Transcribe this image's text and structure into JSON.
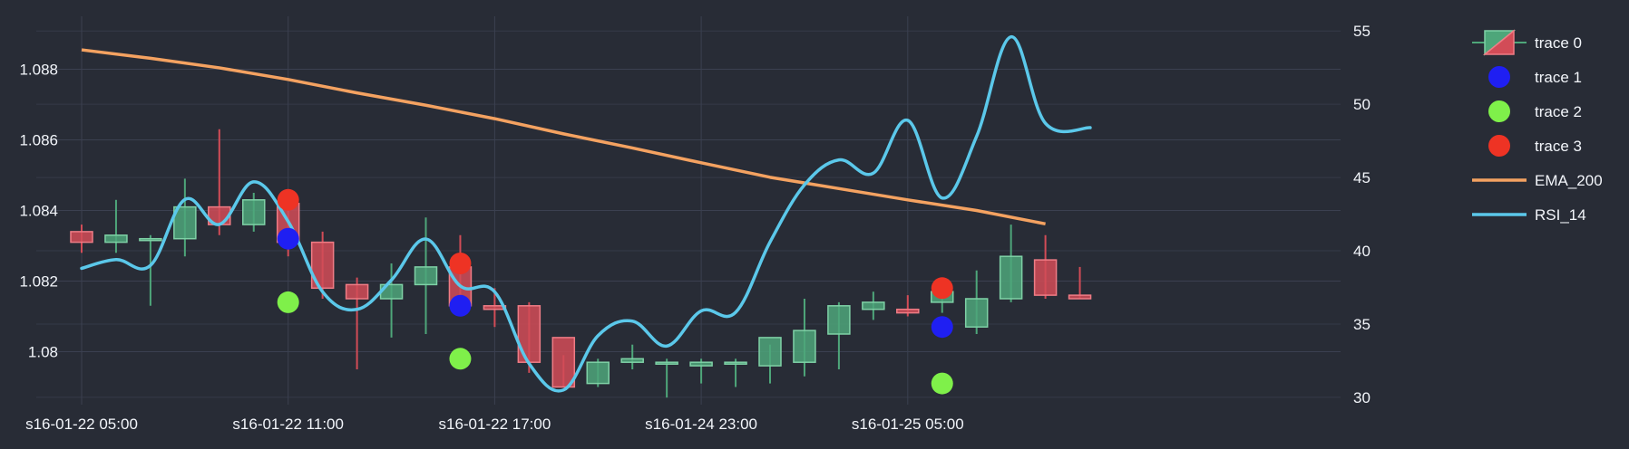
{
  "chart_data": {
    "type": "candlestick",
    "background": "#282c36",
    "grid": true,
    "grid_color": "#3b4050",
    "legend_placement": "right",
    "x_axis": {
      "tick_labels": [
        "s16-01-22 05:00",
        "s16-01-22 11:00",
        "s16-01-22 17:00",
        "s16-01-24 23:00",
        "s16-01-25 05:00"
      ],
      "tick_indices": [
        0,
        6,
        12,
        18,
        24
      ]
    },
    "y_axis_left": {
      "range": [
        1.0785,
        1.0895
      ],
      "ticks": [
        1.08,
        1.082,
        1.084,
        1.086,
        1.088
      ],
      "tick_labels": [
        "1.08",
        "1.082",
        "1.084",
        "1.086",
        "1.088"
      ]
    },
    "y_axis_right": {
      "range": [
        29.5,
        56
      ],
      "ticks": [
        30,
        35,
        40,
        45,
        50,
        55
      ],
      "tick_labels": [
        "30",
        "35",
        "40",
        "45",
        "50",
        "55"
      ]
    },
    "candles": {
      "name": "trace 0",
      "increasing_color": "#4ea67a",
      "decreasing_color": "#d24c57",
      "open": [
        1.0834,
        1.0831,
        1.0832,
        1.0832,
        1.0841,
        1.0836,
        1.0842,
        1.0831,
        1.0819,
        1.0815,
        1.0819,
        1.0824,
        1.0813,
        1.0813,
        1.0804,
        1.0791,
        1.0797,
        1.0797,
        1.0796,
        1.0797,
        1.0796,
        1.0797,
        1.0805,
        1.0812,
        1.0812,
        1.0814,
        1.0807,
        1.0815,
        1.0826,
        1.0816
      ],
      "high": [
        1.0836,
        1.0843,
        1.0833,
        1.0849,
        1.0863,
        1.0845,
        1.0843,
        1.0834,
        1.0821,
        1.0825,
        1.0838,
        1.0833,
        1.0818,
        1.0814,
        1.0799,
        1.0798,
        1.0802,
        1.0798,
        1.0798,
        1.0798,
        1.0802,
        1.0815,
        1.0814,
        1.0817,
        1.0816,
        1.0819,
        1.0823,
        1.0836,
        1.0833,
        1.0824
      ],
      "low": [
        1.0828,
        1.0828,
        1.0813,
        1.0827,
        1.0833,
        1.0834,
        1.0827,
        1.0815,
        1.0795,
        1.0804,
        1.0805,
        1.0813,
        1.0807,
        1.0794,
        1.079,
        1.079,
        1.0795,
        1.0787,
        1.0791,
        1.079,
        1.0791,
        1.0793,
        1.0795,
        1.0809,
        1.081,
        1.0811,
        1.0805,
        1.0814,
        1.0815,
        1.0815
      ],
      "close": [
        1.0831,
        1.0833,
        1.0832,
        1.0841,
        1.0836,
        1.0843,
        1.0831,
        1.0818,
        1.0815,
        1.0819,
        1.0824,
        1.0813,
        1.0812,
        1.0797,
        1.079,
        1.0797,
        1.0798,
        1.0797,
        1.0797,
        1.0797,
        1.0804,
        1.0806,
        1.0813,
        1.0814,
        1.0811,
        1.0817,
        1.0815,
        1.0827,
        1.0816,
        1.0815
      ]
    },
    "markers": [
      {
        "name": "trace 1",
        "color": "#1f1ff2",
        "points": [
          {
            "i": 6,
            "y": 1.0832
          },
          {
            "i": 11,
            "y": 1.0813
          },
          {
            "i": 25,
            "y": 1.0807
          }
        ]
      },
      {
        "name": "trace 2",
        "color": "#7ff04a",
        "points": [
          {
            "i": 6,
            "y": 1.0814
          },
          {
            "i": 11,
            "y": 1.0798
          },
          {
            "i": 25,
            "y": 1.0791
          }
        ]
      },
      {
        "name": "trace 3",
        "color": "#ee3324",
        "points": [
          {
            "i": 6,
            "y": 1.0843
          },
          {
            "i": 11,
            "y": 1.0825
          },
          {
            "i": 25,
            "y": 1.0818
          }
        ]
      }
    ],
    "lines": [
      {
        "name": "EMA_200",
        "color": "#f4a261",
        "axis": "left",
        "values": [
          1.08855,
          1.08831,
          1.08804,
          1.08771,
          1.08733,
          1.08698,
          1.0866,
          1.08617,
          1.08577,
          1.08535,
          1.08494,
          1.08462,
          1.0843,
          1.084,
          1.08362
        ],
        "indices": [
          0,
          2,
          4,
          6,
          8,
          10,
          12,
          14,
          16,
          18,
          20,
          22,
          24,
          26,
          28
        ]
      },
      {
        "name": "RSI_14",
        "color": "#5bc8ea",
        "axis": "right",
        "smooth": true,
        "values": [
          38.8,
          39.4,
          39.0,
          43.5,
          41.8,
          44.7,
          42.0,
          37.2,
          36.0,
          38.0,
          40.8,
          37.6,
          37.2,
          32.3,
          30.5,
          34.2,
          35.2,
          33.5,
          35.9,
          35.8,
          40.6,
          44.5,
          46.2,
          45.3,
          48.9,
          43.6,
          47.8,
          54.6,
          48.7,
          48.4
        ],
        "indices": [
          0,
          1,
          2,
          3,
          4,
          5,
          6,
          7,
          8,
          9,
          10,
          11,
          12,
          13,
          14,
          15,
          16,
          17,
          18,
          19,
          20,
          21,
          22,
          23,
          24,
          25,
          26,
          27,
          28,
          29.3
        ]
      }
    ],
    "legend": [
      "trace 0",
      "trace 1",
      "trace 2",
      "trace 3",
      "EMA_200",
      "RSI_14"
    ]
  }
}
